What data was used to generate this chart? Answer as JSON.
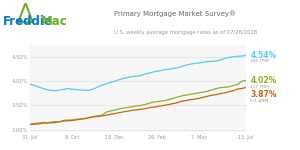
{
  "title": "Primary Mortgage Market Survey®",
  "subtitle": "U.S. weekly average mortgage rates as of 07/26/2018",
  "x_labels": [
    "31. Jul",
    "9. Oct",
    "18. Dec",
    "26. Feb",
    "7. May",
    "15. Jul"
  ],
  "ylim": [
    2.95,
    4.75
  ],
  "yticks": [
    3.0,
    3.5,
    4.0,
    4.5
  ],
  "line_30y_color": "#5bc8f5",
  "line_15y_color": "#8ab424",
  "line_arm_color": "#c8640a",
  "label_30y": "4.54%",
  "label_15y": "4.02%",
  "label_arm": "3.87%",
  "sublabel_30y": "30Y FRM",
  "sublabel_15y": "15Y FRM",
  "sublabel_arm": "5/1 ARM",
  "bg_color": "#ffffff",
  "plot_bg_color": "#f7f7f7",
  "freddie_color": "#0077c8",
  "mac_color": "#6ab023",
  "roof_color": "#6ab023",
  "grid_color": "#e0e0e0",
  "title_color": "#666666",
  "subtitle_color": "#999999",
  "tick_color": "#999999"
}
